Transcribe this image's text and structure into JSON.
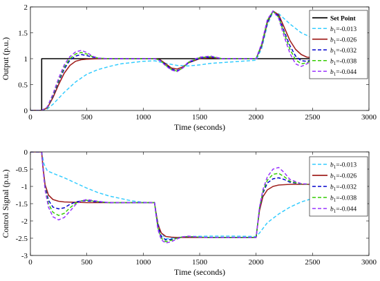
{
  "chart_data": [
    {
      "type": "line",
      "xlabel": "Time (seconds)",
      "ylabel": "Output (p.u.)",
      "xlim": [
        0,
        3000
      ],
      "ylim": [
        0,
        2
      ],
      "xticks": [
        0,
        500,
        1000,
        1500,
        2000,
        2500,
        3000
      ],
      "yticks": [
        0,
        0.5,
        1,
        1.5,
        2
      ],
      "ytick_labels": [
        "0",
        "0.5",
        "1",
        "1.5",
        "2"
      ],
      "legend_position": "top-right",
      "series": [
        {
          "name": "Set Point",
          "legend_prefix": "Set Point",
          "legend_value": "",
          "color": "#000000",
          "style": "solid",
          "x": [
            0,
            100,
            100,
            2500
          ],
          "y": [
            0,
            0,
            1,
            1
          ]
        },
        {
          "name": "b1=-0.013",
          "legend_prefix": "b",
          "legend_sub": "1",
          "legend_value": "=-0.013",
          "color": "#33ccff",
          "style": "dashed",
          "x": [
            0,
            100,
            150,
            200,
            300,
            400,
            500,
            600,
            700,
            800,
            1000,
            1100,
            1200,
            1300,
            1400,
            1500,
            1600,
            1800,
            2000,
            2050,
            2100,
            2150,
            2200,
            2300,
            2400,
            2500
          ],
          "y": [
            0,
            0,
            0.03,
            0.12,
            0.35,
            0.55,
            0.7,
            0.79,
            0.85,
            0.9,
            0.95,
            0.96,
            0.91,
            0.87,
            0.86,
            0.88,
            0.91,
            0.94,
            0.97,
            1.2,
            1.65,
            1.9,
            1.87,
            1.67,
            1.5,
            1.4
          ]
        },
        {
          "name": "b1=-0.026",
          "legend_prefix": "b",
          "legend_sub": "1",
          "legend_value": "=-0.026",
          "color": "#a0201e",
          "style": "solid",
          "x": [
            0,
            100,
            150,
            200,
            250,
            300,
            350,
            400,
            450,
            500,
            600,
            800,
            1000,
            1100,
            1150,
            1200,
            1250,
            1300,
            1350,
            1400,
            1500,
            1600,
            1700,
            2000,
            2050,
            2100,
            2150,
            2200,
            2250,
            2300,
            2350,
            2400,
            2450,
            2500
          ],
          "y": [
            0,
            0,
            0.05,
            0.25,
            0.5,
            0.72,
            0.87,
            0.95,
            0.98,
            0.99,
            1.0,
            1.0,
            1.0,
            1.0,
            0.98,
            0.9,
            0.82,
            0.8,
            0.84,
            0.92,
            1.0,
            1.02,
            1.0,
            1.0,
            1.25,
            1.7,
            1.92,
            1.85,
            1.6,
            1.35,
            1.18,
            1.08,
            1.03,
            1.02
          ]
        },
        {
          "name": "b1=-0.032",
          "legend_prefix": "b",
          "legend_sub": "1",
          "legend_value": "=-0.032",
          "color": "#0000cc",
          "style": "dashed",
          "x": [
            0,
            100,
            150,
            200,
            250,
            300,
            350,
            400,
            450,
            500,
            550,
            600,
            700,
            1000,
            1100,
            1150,
            1200,
            1250,
            1300,
            1350,
            1400,
            1500,
            1600,
            1700,
            2000,
            2050,
            2100,
            2150,
            2200,
            2250,
            2300,
            2350,
            2400,
            2450,
            2500
          ],
          "y": [
            0,
            0,
            0.06,
            0.28,
            0.55,
            0.8,
            0.97,
            1.05,
            1.08,
            1.06,
            1.03,
            1.01,
            1.0,
            1.0,
            1.0,
            0.97,
            0.88,
            0.8,
            0.77,
            0.82,
            0.92,
            1.01,
            1.03,
            1.0,
            1.0,
            1.27,
            1.72,
            1.92,
            1.82,
            1.52,
            1.25,
            1.05,
            0.96,
            0.95,
            0.98
          ]
        },
        {
          "name": "b1=-0.038",
          "legend_prefix": "b",
          "legend_sub": "1",
          "legend_value": "=-0.038",
          "color": "#33cc00",
          "style": "dashed",
          "x": [
            0,
            100,
            150,
            200,
            250,
            300,
            350,
            400,
            450,
            500,
            550,
            600,
            700,
            1000,
            1100,
            1150,
            1200,
            1250,
            1300,
            1350,
            1400,
            1500,
            1600,
            1700,
            2000,
            2050,
            2100,
            2150,
            2200,
            2250,
            2300,
            2350,
            2400,
            2450,
            2500
          ],
          "y": [
            0,
            0,
            0.06,
            0.3,
            0.58,
            0.84,
            1.0,
            1.09,
            1.12,
            1.09,
            1.04,
            1.01,
            1.0,
            1.0,
            1.0,
            0.97,
            0.87,
            0.79,
            0.76,
            0.82,
            0.93,
            1.02,
            1.04,
            1.0,
            1.0,
            1.28,
            1.74,
            1.92,
            1.8,
            1.48,
            1.18,
            0.98,
            0.9,
            0.92,
            0.98
          ]
        },
        {
          "name": "b1=-0.044",
          "legend_prefix": "b",
          "legend_sub": "1",
          "legend_value": "=-0.044",
          "color": "#9933ff",
          "style": "dashed",
          "x": [
            0,
            100,
            150,
            200,
            250,
            300,
            350,
            400,
            450,
            500,
            550,
            600,
            700,
            1000,
            1100,
            1150,
            1200,
            1250,
            1300,
            1350,
            1400,
            1500,
            1600,
            1700,
            2000,
            2050,
            2100,
            2150,
            2200,
            2250,
            2300,
            2350,
            2400,
            2450,
            2500
          ],
          "y": [
            0,
            0,
            0.07,
            0.32,
            0.62,
            0.88,
            1.04,
            1.13,
            1.16,
            1.12,
            1.05,
            1.01,
            1.0,
            1.0,
            1.0,
            0.96,
            0.86,
            0.78,
            0.75,
            0.82,
            0.94,
            1.03,
            1.05,
            1.0,
            1.0,
            1.3,
            1.76,
            1.92,
            1.78,
            1.42,
            1.1,
            0.9,
            0.85,
            0.9,
            0.98
          ]
        }
      ]
    },
    {
      "type": "line",
      "xlabel": "Time (seconds)",
      "ylabel": "Control Signal (p.u.)",
      "xlim": [
        0,
        3000
      ],
      "ylim": [
        -3,
        0
      ],
      "xticks": [
        0,
        500,
        1000,
        1500,
        2000,
        2500,
        3000
      ],
      "yticks": [
        -3,
        -2.5,
        -2,
        -1.5,
        -1,
        -0.5,
        0
      ],
      "ytick_labels": [
        "-3",
        "-2.5",
        "-2",
        "-1.5",
        "-1",
        "-0.5",
        "0"
      ],
      "legend_position": "top-right",
      "series": [
        {
          "name": "b1=-0.013",
          "legend_prefix": "b",
          "legend_sub": "1",
          "legend_value": "=-0.013",
          "color": "#33ccff",
          "style": "dashed",
          "x": [
            0,
            100,
            120,
            150,
            200,
            300,
            400,
            500,
            600,
            700,
            800,
            900,
            1000,
            1100,
            1120,
            1150,
            1200,
            1300,
            1400,
            1600,
            1800,
            2000,
            2030,
            2100,
            2200,
            2300,
            2400,
            2500
          ],
          "y": [
            0,
            0,
            -0.35,
            -0.55,
            -0.62,
            -0.75,
            -0.9,
            -1.05,
            -1.18,
            -1.28,
            -1.35,
            -1.42,
            -1.46,
            -1.47,
            -1.9,
            -2.3,
            -2.52,
            -2.48,
            -2.45,
            -2.44,
            -2.44,
            -2.45,
            -2.35,
            -2.05,
            -1.8,
            -1.6,
            -1.45,
            -1.35
          ]
        },
        {
          "name": "b1=-0.026",
          "legend_prefix": "b",
          "legend_sub": "1",
          "legend_value": "=-0.026",
          "color": "#a0201e",
          "style": "solid",
          "x": [
            0,
            100,
            110,
            130,
            160,
            200,
            250,
            300,
            400,
            500,
            700,
            1000,
            1100,
            1110,
            1130,
            1160,
            1200,
            1250,
            1300,
            1400,
            1600,
            1800,
            2000,
            2010,
            2030,
            2060,
            2100,
            2150,
            2200,
            2300,
            2400,
            2500
          ],
          "y": [
            0,
            0,
            -0.4,
            -0.95,
            -1.25,
            -1.38,
            -1.43,
            -1.45,
            -1.46,
            -1.47,
            -1.47,
            -1.47,
            -1.47,
            -1.7,
            -2.1,
            -2.35,
            -2.45,
            -2.47,
            -2.48,
            -2.48,
            -2.48,
            -2.48,
            -2.48,
            -2.2,
            -1.7,
            -1.3,
            -1.1,
            -1.0,
            -0.96,
            -0.94,
            -0.94,
            -0.94
          ]
        },
        {
          "name": "b1=-0.032",
          "legend_prefix": "b",
          "legend_sub": "1",
          "legend_value": "=-0.032",
          "color": "#0000cc",
          "style": "dashed",
          "x": [
            0,
            100,
            110,
            130,
            160,
            200,
            250,
            300,
            350,
            400,
            450,
            500,
            600,
            700,
            1000,
            1100,
            1110,
            1130,
            1160,
            1200,
            1250,
            1300,
            1350,
            1400,
            1500,
            1600,
            2000,
            2010,
            2030,
            2060,
            2100,
            2150,
            2200,
            2250,
            2300,
            2400,
            2500
          ],
          "y": [
            0,
            0,
            -0.4,
            -1.0,
            -1.4,
            -1.6,
            -1.65,
            -1.62,
            -1.52,
            -1.45,
            -1.42,
            -1.42,
            -1.45,
            -1.47,
            -1.47,
            -1.47,
            -1.72,
            -2.15,
            -2.45,
            -2.55,
            -2.53,
            -2.5,
            -2.46,
            -2.46,
            -2.47,
            -2.48,
            -2.48,
            -2.2,
            -1.65,
            -1.2,
            -0.9,
            -0.78,
            -0.75,
            -0.8,
            -0.88,
            -0.93,
            -0.94
          ]
        },
        {
          "name": "b1=-0.038",
          "legend_prefix": "b",
          "legend_sub": "1",
          "legend_value": "=-0.038",
          "color": "#33cc00",
          "style": "dashed",
          "x": [
            0,
            100,
            110,
            130,
            160,
            200,
            250,
            300,
            350,
            400,
            450,
            500,
            600,
            700,
            1000,
            1100,
            1110,
            1130,
            1160,
            1200,
            1250,
            1300,
            1350,
            1400,
            1500,
            1600,
            2000,
            2010,
            2030,
            2060,
            2100,
            2150,
            2200,
            2250,
            2300,
            2400,
            2500
          ],
          "y": [
            0,
            0,
            -0.42,
            -1.05,
            -1.5,
            -1.75,
            -1.84,
            -1.78,
            -1.62,
            -1.49,
            -1.42,
            -1.4,
            -1.44,
            -1.47,
            -1.47,
            -1.47,
            -1.74,
            -2.2,
            -2.5,
            -2.6,
            -2.56,
            -2.5,
            -2.46,
            -2.45,
            -2.47,
            -2.48,
            -2.48,
            -2.2,
            -1.62,
            -1.15,
            -0.82,
            -0.65,
            -0.62,
            -0.72,
            -0.85,
            -0.93,
            -0.94
          ]
        },
        {
          "name": "b1=-0.044",
          "legend_prefix": "b",
          "legend_sub": "1",
          "legend_value": "=-0.044",
          "color": "#9933ff",
          "style": "dashed",
          "x": [
            0,
            100,
            110,
            130,
            160,
            200,
            250,
            300,
            350,
            400,
            450,
            500,
            600,
            700,
            1000,
            1100,
            1110,
            1130,
            1160,
            1200,
            1250,
            1300,
            1350,
            1400,
            1500,
            1600,
            2000,
            2010,
            2030,
            2060,
            2100,
            2150,
            2200,
            2250,
            2300,
            2400,
            2500
          ],
          "y": [
            0,
            0,
            -0.45,
            -1.1,
            -1.6,
            -1.88,
            -1.97,
            -1.9,
            -1.72,
            -1.53,
            -1.42,
            -1.38,
            -1.43,
            -1.47,
            -1.47,
            -1.47,
            -1.76,
            -2.25,
            -2.55,
            -2.64,
            -2.6,
            -2.52,
            -2.46,
            -2.44,
            -2.47,
            -2.48,
            -2.48,
            -2.2,
            -1.6,
            -1.1,
            -0.72,
            -0.5,
            -0.45,
            -0.6,
            -0.8,
            -0.92,
            -0.94
          ]
        }
      ]
    }
  ]
}
